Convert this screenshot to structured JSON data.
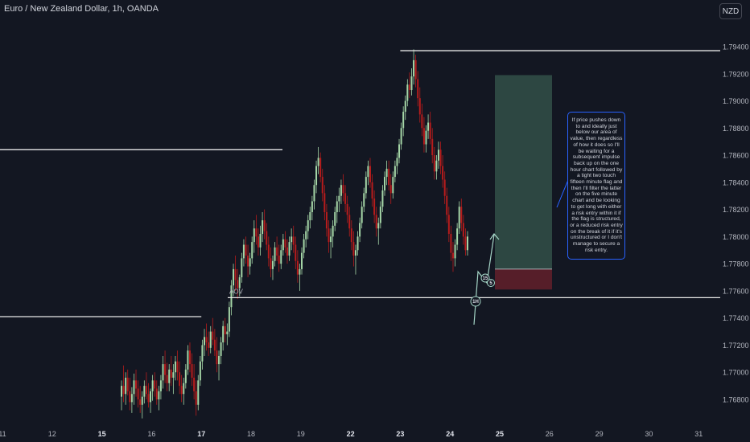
{
  "header": {
    "symbol": "Euro / New Zealand Dollar, 1h, OANDA",
    "currency": "NZD"
  },
  "annotation": {
    "text": "If price pushes down to and ideally just below our area of value, then regardless of how it does so I'll be waiting for a subsequent impulse back up on the one hour chart followed by a tight two touch fifteen minute flag and then I'll filter the latter on the five minute chart and be looking to get long with either a risk entry within it if the flag is structured, or a reduced risk entry on the break of it if it's unstructured or I don't manage to secure a risk entry."
  },
  "chart_data": {
    "type": "candlestick",
    "y_axis_ticks": [
      "1.76800",
      "1.77000",
      "1.77200",
      "1.77400",
      "1.77600",
      "1.77800",
      "1.78000",
      "1.78200",
      "1.78400",
      "1.78600",
      "1.78800",
      "1.79000",
      "1.79200",
      "1.79400"
    ],
    "x_axis_ticks": [
      {
        "label": "11",
        "bold": false
      },
      {
        "label": "12",
        "bold": false
      },
      {
        "label": "15",
        "bold": true
      },
      {
        "label": "16",
        "bold": false
      },
      {
        "label": "17",
        "bold": true
      },
      {
        "label": "18",
        "bold": false
      },
      {
        "label": "19",
        "bold": false
      },
      {
        "label": "22",
        "bold": true
      },
      {
        "label": "23",
        "bold": true
      },
      {
        "label": "24",
        "bold": true
      },
      {
        "label": "25",
        "bold": true
      },
      {
        "label": "26",
        "bold": false
      },
      {
        "label": "29",
        "bold": false
      },
      {
        "label": "30",
        "bold": false
      },
      {
        "label": "31",
        "bold": false
      }
    ],
    "ylim": [
      1.7665,
      1.7952
    ],
    "horizontal_levels": [
      {
        "price": 1.7937,
        "x_from": "23",
        "x_to": "end"
      },
      {
        "price": 1.7864,
        "x_from": "start",
        "x_to": "18.6"
      },
      {
        "price": 1.7755,
        "x_from": "17.5",
        "x_to": "end",
        "label": "AOV"
      },
      {
        "price": 1.7741,
        "x_from": "start",
        "x_to": "17"
      }
    ],
    "long_position": {
      "entry": 1.7776,
      "target": 1.7919,
      "stop": 1.7761
    },
    "path_markers": [
      "1H",
      "15",
      "5"
    ],
    "candles_ohlc": [
      [
        1.7682,
        1.7694,
        1.7672,
        1.769
      ],
      [
        1.769,
        1.7705,
        1.7678,
        1.7684
      ],
      [
        1.7684,
        1.77,
        1.7676,
        1.7696
      ],
      [
        1.7696,
        1.7702,
        1.7683,
        1.7686
      ],
      [
        1.7686,
        1.7696,
        1.7672,
        1.7678
      ],
      [
        1.7678,
        1.7689,
        1.767,
        1.7684
      ],
      [
        1.7684,
        1.7699,
        1.7676,
        1.7694
      ],
      [
        1.7694,
        1.7702,
        1.7682,
        1.7688
      ],
      [
        1.7688,
        1.7694,
        1.7674,
        1.768
      ],
      [
        1.768,
        1.769,
        1.767,
        1.7676
      ],
      [
        1.7676,
        1.7686,
        1.7666,
        1.7682
      ],
      [
        1.7682,
        1.7694,
        1.7677,
        1.769
      ],
      [
        1.769,
        1.77,
        1.768,
        1.7684
      ],
      [
        1.7684,
        1.7692,
        1.7674,
        1.7678
      ],
      [
        1.7678,
        1.7688,
        1.767,
        1.7686
      ],
      [
        1.7686,
        1.7698,
        1.7679,
        1.7694
      ],
      [
        1.7694,
        1.77,
        1.7682,
        1.7688
      ],
      [
        1.7688,
        1.7694,
        1.7676,
        1.768
      ],
      [
        1.768,
        1.769,
        1.7672,
        1.7686
      ],
      [
        1.7686,
        1.7698,
        1.768,
        1.7694
      ],
      [
        1.7694,
        1.7712,
        1.7688,
        1.7706
      ],
      [
        1.7706,
        1.7716,
        1.7692,
        1.7698
      ],
      [
        1.7698,
        1.7707,
        1.7686,
        1.7692
      ],
      [
        1.7692,
        1.7706,
        1.7686,
        1.7702
      ],
      [
        1.7702,
        1.7712,
        1.769,
        1.7696
      ],
      [
        1.7696,
        1.7706,
        1.7684,
        1.77
      ],
      [
        1.77,
        1.7712,
        1.7694,
        1.7708
      ],
      [
        1.7708,
        1.7716,
        1.7694,
        1.77
      ],
      [
        1.77,
        1.7708,
        1.7684,
        1.769
      ],
      [
        1.769,
        1.7698,
        1.7678,
        1.7684
      ],
      [
        1.7684,
        1.7696,
        1.7676,
        1.7692
      ],
      [
        1.7692,
        1.7706,
        1.7688,
        1.7702
      ],
      [
        1.7702,
        1.772,
        1.7698,
        1.7716
      ],
      [
        1.7716,
        1.7722,
        1.77,
        1.7706
      ],
      [
        1.7706,
        1.7714,
        1.769,
        1.7696
      ],
      [
        1.7696,
        1.7706,
        1.768,
        1.7686
      ],
      [
        1.7686,
        1.7694,
        1.7668,
        1.7676
      ],
      [
        1.7676,
        1.7698,
        1.7672,
        1.7694
      ],
      [
        1.7694,
        1.7712,
        1.769,
        1.7708
      ],
      [
        1.7708,
        1.7724,
        1.7702,
        1.772
      ],
      [
        1.772,
        1.7732,
        1.7712,
        1.7726
      ],
      [
        1.7726,
        1.7736,
        1.7716,
        1.7722
      ],
      [
        1.7722,
        1.773,
        1.7712,
        1.7718
      ],
      [
        1.7718,
        1.7734,
        1.7714,
        1.773
      ],
      [
        1.773,
        1.774,
        1.772,
        1.7724
      ],
      [
        1.7724,
        1.7732,
        1.7712,
        1.7716
      ],
      [
        1.7716,
        1.7726,
        1.77,
        1.7706
      ],
      [
        1.7706,
        1.7716,
        1.7694,
        1.7712
      ],
      [
        1.7712,
        1.7726,
        1.7706,
        1.7722
      ],
      [
        1.7722,
        1.7738,
        1.7716,
        1.7734
      ],
      [
        1.7734,
        1.774,
        1.7722,
        1.7728
      ],
      [
        1.7728,
        1.7736,
        1.772,
        1.773
      ],
      [
        1.773,
        1.7752,
        1.7726,
        1.7748
      ],
      [
        1.7748,
        1.7768,
        1.7742,
        1.7764
      ],
      [
        1.7764,
        1.778,
        1.7756,
        1.7776
      ],
      [
        1.7776,
        1.7786,
        1.776,
        1.7768
      ],
      [
        1.7768,
        1.7776,
        1.7754,
        1.7762
      ],
      [
        1.7762,
        1.7772,
        1.7756,
        1.777
      ],
      [
        1.777,
        1.7788,
        1.7766,
        1.7784
      ],
      [
        1.7784,
        1.7798,
        1.7778,
        1.7794
      ],
      [
        1.7794,
        1.78,
        1.778,
        1.7786
      ],
      [
        1.7786,
        1.7794,
        1.777,
        1.7778
      ],
      [
        1.7778,
        1.7788,
        1.7772,
        1.7784
      ],
      [
        1.7784,
        1.78,
        1.778,
        1.7796
      ],
      [
        1.7796,
        1.7812,
        1.7788,
        1.7806
      ],
      [
        1.7806,
        1.7816,
        1.7794,
        1.78
      ],
      [
        1.78,
        1.7806,
        1.7786,
        1.7792
      ],
      [
        1.7792,
        1.7808,
        1.7786,
        1.7802
      ],
      [
        1.7802,
        1.7818,
        1.7796,
        1.7812
      ],
      [
        1.7812,
        1.782,
        1.7798,
        1.7804
      ],
      [
        1.7804,
        1.781,
        1.779,
        1.7794
      ],
      [
        1.7794,
        1.78,
        1.7778,
        1.7784
      ],
      [
        1.7784,
        1.7792,
        1.777,
        1.7776
      ],
      [
        1.7776,
        1.7786,
        1.7768,
        1.7782
      ],
      [
        1.7782,
        1.7796,
        1.7778,
        1.7792
      ],
      [
        1.7792,
        1.78,
        1.7782,
        1.7786
      ],
      [
        1.7786,
        1.7794,
        1.7774,
        1.778
      ],
      [
        1.778,
        1.7794,
        1.7776,
        1.779
      ],
      [
        1.779,
        1.7802,
        1.7786,
        1.7798
      ],
      [
        1.7798,
        1.7804,
        1.7788,
        1.7792
      ],
      [
        1.7792,
        1.7798,
        1.778,
        1.7786
      ],
      [
        1.7786,
        1.78,
        1.7782,
        1.7796
      ],
      [
        1.7796,
        1.7806,
        1.779,
        1.78
      ],
      [
        1.78,
        1.7808,
        1.7788,
        1.7794
      ],
      [
        1.7794,
        1.78,
        1.7776,
        1.7782
      ],
      [
        1.7782,
        1.779,
        1.7766,
        1.7772
      ],
      [
        1.7772,
        1.778,
        1.776,
        1.7776
      ],
      [
        1.7776,
        1.7792,
        1.7772,
        1.7788
      ],
      [
        1.7788,
        1.7802,
        1.7784,
        1.7798
      ],
      [
        1.7798,
        1.7808,
        1.7792,
        1.7804
      ],
      [
        1.7804,
        1.7816,
        1.7798,
        1.7812
      ],
      [
        1.7812,
        1.7822,
        1.7806,
        1.7818
      ],
      [
        1.7818,
        1.783,
        1.7812,
        1.7826
      ],
      [
        1.7826,
        1.7842,
        1.782,
        1.7838
      ],
      [
        1.7838,
        1.7856,
        1.7832,
        1.7852
      ],
      [
        1.7852,
        1.7866,
        1.7846,
        1.7858
      ],
      [
        1.7858,
        1.7862,
        1.784,
        1.7844
      ],
      [
        1.7844,
        1.785,
        1.7826,
        1.7832
      ],
      [
        1.7832,
        1.7838,
        1.7812,
        1.7818
      ],
      [
        1.7818,
        1.7824,
        1.78,
        1.7806
      ],
      [
        1.7806,
        1.7812,
        1.7788,
        1.7796
      ],
      [
        1.7796,
        1.7806,
        1.7784,
        1.78
      ],
      [
        1.78,
        1.7812,
        1.7792,
        1.7808
      ],
      [
        1.7808,
        1.7822,
        1.7804,
        1.7818
      ],
      [
        1.7818,
        1.783,
        1.781,
        1.7826
      ],
      [
        1.7826,
        1.7836,
        1.7818,
        1.783
      ],
      [
        1.783,
        1.7842,
        1.7824,
        1.7838
      ],
      [
        1.7838,
        1.7846,
        1.7826,
        1.7832
      ],
      [
        1.7832,
        1.7838,
        1.7818,
        1.7824
      ],
      [
        1.7824,
        1.783,
        1.781,
        1.7816
      ],
      [
        1.7816,
        1.7822,
        1.78,
        1.7806
      ],
      [
        1.7806,
        1.7812,
        1.779,
        1.7796
      ],
      [
        1.7796,
        1.7804,
        1.7778,
        1.7786
      ],
      [
        1.7786,
        1.7794,
        1.7772,
        1.779
      ],
      [
        1.779,
        1.7804,
        1.7786,
        1.78
      ],
      [
        1.78,
        1.7814,
        1.7796,
        1.781
      ],
      [
        1.781,
        1.7826,
        1.7806,
        1.7822
      ],
      [
        1.7822,
        1.7836,
        1.7818,
        1.7832
      ],
      [
        1.7832,
        1.7848,
        1.7828,
        1.7844
      ],
      [
        1.7844,
        1.7856,
        1.7838,
        1.7852
      ],
      [
        1.7852,
        1.7858,
        1.7836,
        1.784
      ],
      [
        1.784,
        1.7846,
        1.7822,
        1.7828
      ],
      [
        1.7828,
        1.7834,
        1.781,
        1.7816
      ],
      [
        1.7816,
        1.7822,
        1.78,
        1.7806
      ],
      [
        1.7806,
        1.7814,
        1.7794,
        1.781
      ],
      [
        1.781,
        1.7826,
        1.7806,
        1.7822
      ],
      [
        1.7822,
        1.7838,
        1.7818,
        1.7834
      ],
      [
        1.7834,
        1.7848,
        1.783,
        1.7844
      ],
      [
        1.7844,
        1.7856,
        1.7838,
        1.785
      ],
      [
        1.785,
        1.7856,
        1.7834,
        1.7838
      ],
      [
        1.7838,
        1.7846,
        1.7824,
        1.7832
      ],
      [
        1.7832,
        1.7848,
        1.7828,
        1.7844
      ],
      [
        1.7844,
        1.7856,
        1.784,
        1.7852
      ],
      [
        1.7852,
        1.7862,
        1.7846,
        1.7858
      ],
      [
        1.7858,
        1.7872,
        1.7854,
        1.7868
      ],
      [
        1.7868,
        1.7884,
        1.7864,
        1.788
      ],
      [
        1.788,
        1.7896,
        1.7874,
        1.7892
      ],
      [
        1.7892,
        1.7904,
        1.7886,
        1.79
      ],
      [
        1.79,
        1.7916,
        1.7896,
        1.7912
      ],
      [
        1.7912,
        1.7921,
        1.7902,
        1.7908
      ],
      [
        1.7908,
        1.7924,
        1.7904,
        1.7918
      ],
      [
        1.7918,
        1.7938,
        1.7912,
        1.793
      ],
      [
        1.793,
        1.7934,
        1.791,
        1.7916
      ],
      [
        1.7916,
        1.7922,
        1.7896,
        1.7902
      ],
      [
        1.7902,
        1.791,
        1.7884,
        1.789
      ],
      [
        1.789,
        1.7898,
        1.7874,
        1.788
      ],
      [
        1.788,
        1.7888,
        1.7862,
        1.7868
      ],
      [
        1.7868,
        1.7882,
        1.7862,
        1.7878
      ],
      [
        1.7878,
        1.789,
        1.7872,
        1.7884
      ],
      [
        1.7884,
        1.7892,
        1.7868,
        1.7872
      ],
      [
        1.7872,
        1.788,
        1.7854,
        1.786
      ],
      [
        1.786,
        1.7866,
        1.7842,
        1.7848
      ],
      [
        1.7848,
        1.786,
        1.7842,
        1.7856
      ],
      [
        1.7856,
        1.787,
        1.785,
        1.7864
      ],
      [
        1.7864,
        1.787,
        1.7846,
        1.7852
      ],
      [
        1.7852,
        1.786,
        1.7836,
        1.7842
      ],
      [
        1.7842,
        1.7848,
        1.7824,
        1.783
      ],
      [
        1.783,
        1.7836,
        1.781,
        1.7816
      ],
      [
        1.7816,
        1.7822,
        1.7796,
        1.7802
      ],
      [
        1.7802,
        1.7808,
        1.7782,
        1.7788
      ],
      [
        1.7788,
        1.7796,
        1.7774,
        1.7784
      ],
      [
        1.7784,
        1.7798,
        1.7778,
        1.7794
      ],
      [
        1.7794,
        1.781,
        1.779,
        1.7806
      ],
      [
        1.7806,
        1.7826,
        1.7802,
        1.7822
      ],
      [
        1.7822,
        1.7828,
        1.7804,
        1.781
      ],
      [
        1.781,
        1.7816,
        1.7794,
        1.78
      ],
      [
        1.78,
        1.7806,
        1.7786,
        1.779
      ],
      [
        1.779,
        1.7804,
        1.7786,
        1.78
      ]
    ]
  }
}
